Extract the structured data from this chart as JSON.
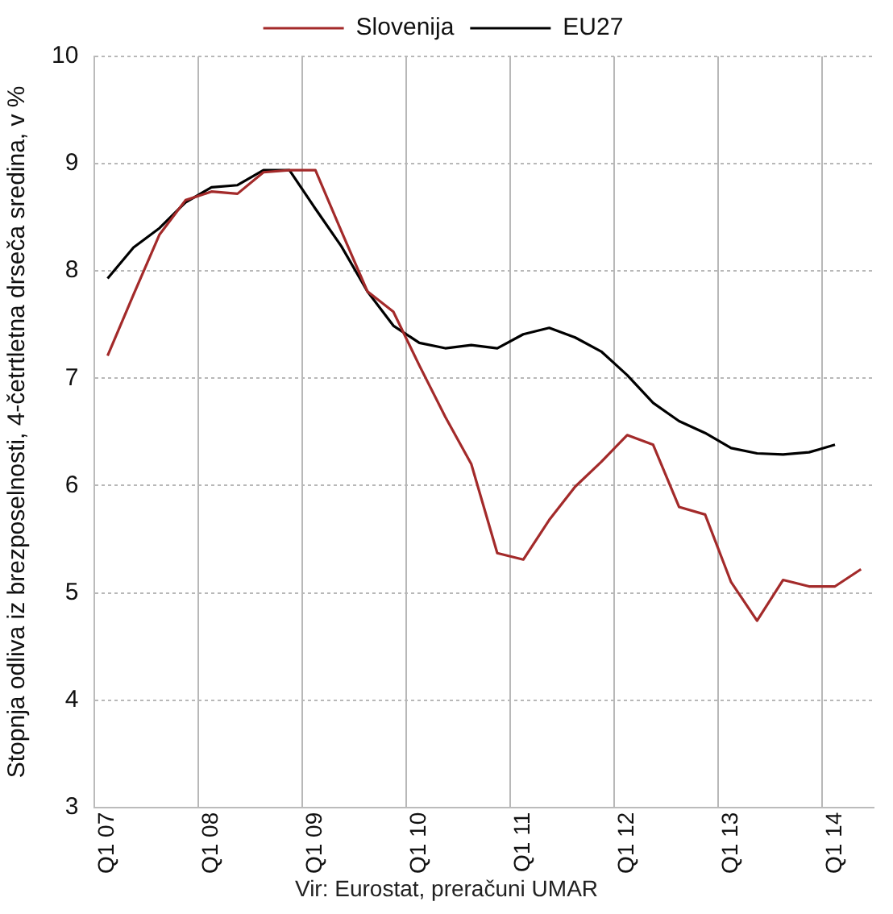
{
  "chart_data": {
    "type": "line",
    "ylabel": "Stopnja odliva iz brezposelnosti, 4-četrtletna drseča sredina, v %",
    "categories": [
      "Q1 07",
      null,
      null,
      null,
      "Q1 08",
      null,
      null,
      null,
      "Q1 09",
      null,
      null,
      null,
      "Q1 10",
      null,
      null,
      null,
      "Q1 11",
      null,
      null,
      null,
      "Q1 12",
      null,
      null,
      null,
      "Q1 13",
      null,
      null,
      null,
      "Q1 14",
      null
    ],
    "series": [
      {
        "name": "Slovenija",
        "color": "#a32a2a",
        "values": [
          7.21,
          7.78,
          8.34,
          8.66,
          8.74,
          8.72,
          8.92,
          8.94,
          8.94,
          8.37,
          7.81,
          7.62,
          7.12,
          6.64,
          6.2,
          5.37,
          5.31,
          5.68,
          5.99,
          6.22,
          6.47,
          6.38,
          5.8,
          5.73,
          5.1,
          4.74,
          5.12,
          5.06,
          5.06,
          5.22
        ]
      },
      {
        "name": "EU27",
        "color": "#000000",
        "values": [
          7.93,
          8.22,
          8.4,
          8.64,
          8.78,
          8.8,
          8.94,
          8.94,
          8.58,
          8.23,
          7.81,
          7.49,
          7.33,
          7.28,
          7.31,
          7.28,
          7.41,
          7.47,
          7.38,
          7.25,
          7.03,
          6.77,
          6.6,
          6.49,
          6.35,
          6.3,
          6.29,
          6.31,
          6.38,
          null
        ]
      }
    ],
    "ylim": [
      3,
      10
    ],
    "yticks": [
      3,
      4,
      5,
      6,
      7,
      8,
      9,
      10
    ],
    "grid": true,
    "legend": "top",
    "marker": "none",
    "line_style": "solid",
    "annotations": [
      "Vir: Eurostat, preračuni UMAR"
    ]
  }
}
